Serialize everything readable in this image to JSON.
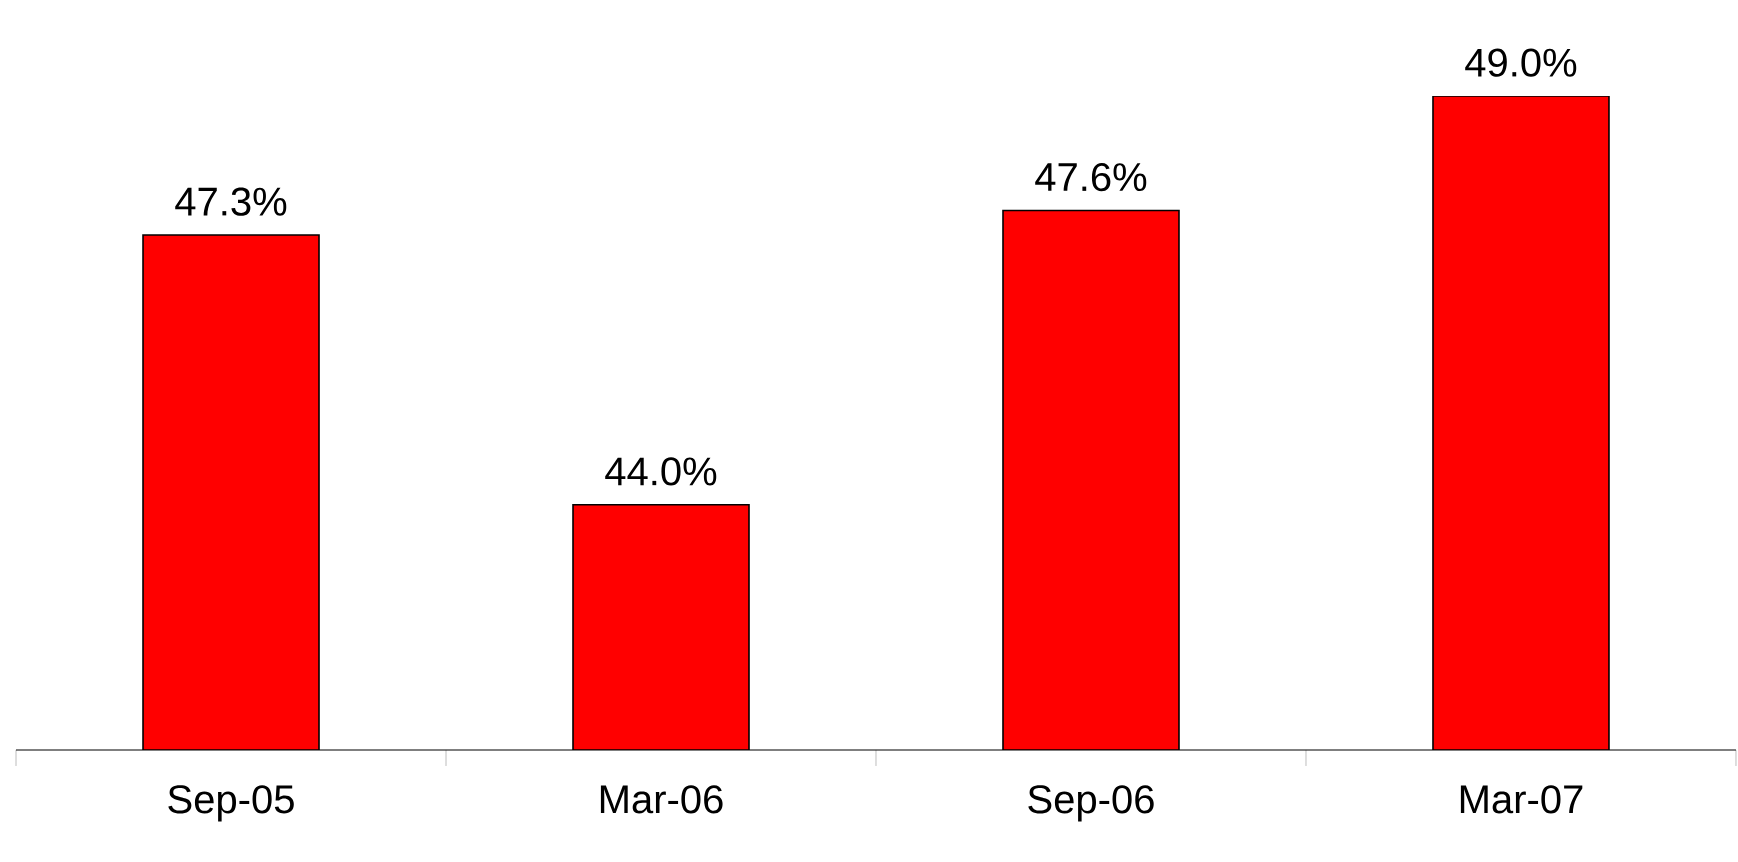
{
  "chart_data": {
    "type": "bar",
    "categories": [
      "Sep-05",
      "Mar-06",
      "Sep-06",
      "Mar-07"
    ],
    "values": [
      47.3,
      44.0,
      47.6,
      49.0
    ],
    "value_labels": [
      "47.3%",
      "44.0%",
      "47.6%",
      "49.0%"
    ],
    "color": "#ff0000",
    "ylim": [
      41,
      49
    ],
    "tick_labels": "x",
    "grid": false
  }
}
